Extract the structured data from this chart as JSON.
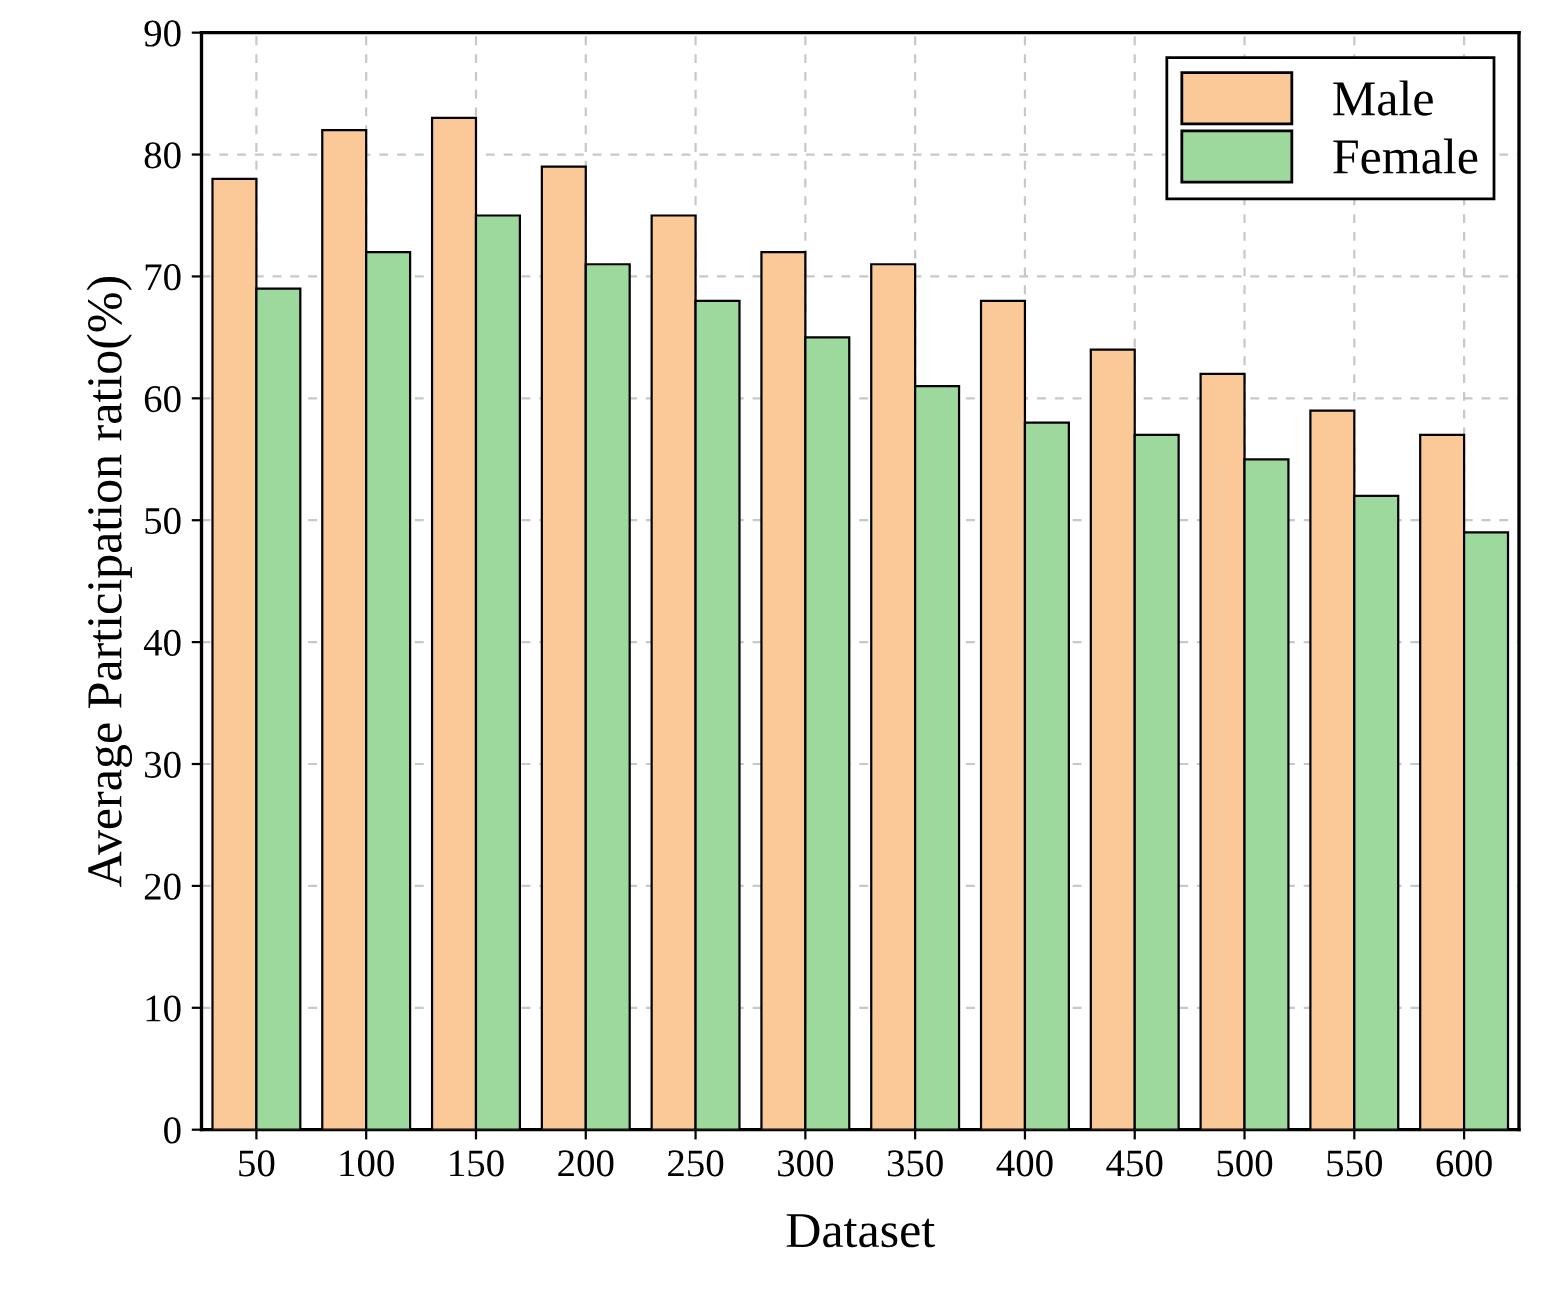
{
  "chart_data": {
    "type": "bar",
    "xlabel": "Dataset",
    "ylabel": "Average Participation ratio(%)",
    "categories": [
      "50",
      "100",
      "150",
      "200",
      "250",
      "300",
      "350",
      "400",
      "450",
      "500",
      "550",
      "600"
    ],
    "series": [
      {
        "name": "Male",
        "color": "#fbc898",
        "values": [
          78,
          82,
          83,
          79,
          75,
          72,
          71,
          68,
          64,
          62,
          59,
          57
        ]
      },
      {
        "name": "Female",
        "color": "#9dd89d",
        "values": [
          69,
          72,
          75,
          71,
          68,
          65,
          61,
          58,
          57,
          55,
          52,
          49
        ]
      }
    ],
    "ylim": [
      0,
      90
    ],
    "yticks": [
      0,
      10,
      20,
      30,
      40,
      50,
      60,
      70,
      80,
      90
    ],
    "grid": true,
    "legend": "top right"
  }
}
